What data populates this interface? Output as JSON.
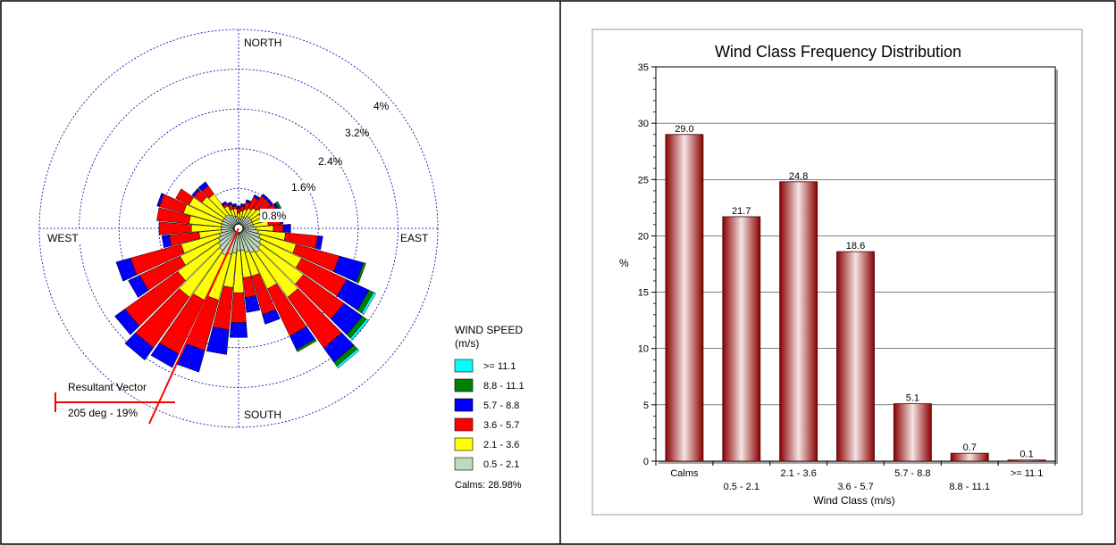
{
  "colors": {
    "speed_bins": [
      "#c0d8c0",
      "#ffff00",
      "#ff0000",
      "#0000ff",
      "#008000",
      "#00ffff"
    ],
    "bar_dark": "#8b0000",
    "bar_light": "#f4e4e4",
    "ring": "#0000aa",
    "resultant": "#ff0000"
  },
  "wind_rose": {
    "north": "NORTH",
    "south": "SOUTH",
    "east": "EAST",
    "west": "WEST",
    "ring_labels": [
      "0.8%",
      "1.6%",
      "2.4%",
      "3.2%",
      "4%"
    ],
    "ring_values": [
      0.8,
      1.6,
      2.4,
      3.2,
      4.0
    ],
    "legend_title": "WIND SPEED",
    "legend_unit": "(m/s)",
    "legend_items": [
      ">= 11.1",
      "8.8 - 11.1",
      "5.7 -  8.8",
      "3.6 -  5.7",
      "2.1 -  3.6",
      "0.5 -  2.1"
    ],
    "calms": "Calms: 28.98%",
    "resultant_label": "Resultant Vector",
    "resultant_value": "205 deg - 19%",
    "resultant_direction_deg": 205
  },
  "chart_data": [
    {
      "type": "wind-rose",
      "directions_deg": [
        0,
        10,
        20,
        30,
        40,
        50,
        60,
        70,
        80,
        90,
        100,
        110,
        120,
        130,
        140,
        150,
        160,
        170,
        180,
        190,
        200,
        210,
        220,
        230,
        240,
        250,
        260,
        270,
        280,
        290,
        300,
        310,
        320,
        330,
        340,
        350
      ],
      "bins": [
        "0.5 -  2.1",
        "2.1 -  3.6",
        "3.6 -  5.7",
        "5.7 -  8.8",
        "8.8 - 11.1",
        ">= 11.1"
      ],
      "cumulative_percent": [
        [
          0.2,
          0.3,
          0.4,
          0.45,
          0.45,
          0.45
        ],
        [
          0.2,
          0.35,
          0.45,
          0.5,
          0.5,
          0.5
        ],
        [
          0.25,
          0.4,
          0.55,
          0.6,
          0.6,
          0.6
        ],
        [
          0.25,
          0.45,
          0.7,
          0.75,
          0.75,
          0.75
        ],
        [
          0.3,
          0.5,
          0.8,
          0.85,
          0.85,
          0.85
        ],
        [
          0.3,
          0.55,
          0.8,
          0.85,
          0.85,
          0.85
        ],
        [
          0.3,
          0.5,
          0.85,
          0.9,
          0.95,
          0.95
        ],
        [
          0.3,
          0.5,
          0.75,
          0.8,
          0.8,
          0.8
        ],
        [
          0.3,
          0.6,
          0.85,
          0.9,
          0.9,
          0.9
        ],
        [
          0.35,
          0.7,
          0.9,
          1.05,
          1.05,
          1.05
        ],
        [
          0.4,
          0.95,
          1.6,
          1.7,
          1.7,
          1.7
        ],
        [
          0.45,
          1.2,
          2.1,
          2.6,
          2.65,
          2.65
        ],
        [
          0.5,
          1.4,
          2.4,
          2.9,
          3.0,
          3.05
        ],
        [
          0.55,
          1.6,
          2.6,
          3.05,
          3.15,
          3.2
        ],
        [
          0.6,
          1.7,
          2.95,
          3.3,
          3.4,
          3.45
        ],
        [
          0.55,
          1.35,
          2.4,
          2.7,
          2.75,
          2.75
        ],
        [
          0.5,
          1.0,
          1.8,
          2.0,
          2.0,
          2.0
        ],
        [
          0.45,
          1.0,
          1.4,
          1.7,
          1.7,
          1.7
        ],
        [
          0.45,
          1.3,
          1.9,
          2.2,
          2.2,
          2.2
        ],
        [
          0.5,
          1.2,
          2.05,
          2.55,
          2.55,
          2.55
        ],
        [
          0.55,
          1.5,
          2.55,
          3.0,
          3.0,
          3.0
        ],
        [
          0.6,
          1.6,
          2.8,
          3.1,
          3.1,
          3.1
        ],
        [
          0.55,
          1.7,
          2.95,
          3.25,
          3.25,
          3.25
        ],
        [
          0.5,
          1.5,
          2.8,
          3.05,
          3.05,
          3.05
        ],
        [
          0.45,
          1.3,
          2.2,
          2.45,
          2.45,
          2.45
        ],
        [
          0.4,
          1.2,
          2.25,
          2.55,
          2.55,
          2.55
        ],
        [
          0.35,
          0.8,
          1.4,
          1.55,
          1.55,
          1.55
        ],
        [
          0.35,
          0.95,
          1.6,
          1.6,
          1.6,
          1.6
        ],
        [
          0.35,
          1.0,
          1.65,
          1.65,
          1.65,
          1.65
        ],
        [
          0.35,
          1.15,
          1.65,
          1.7,
          1.7,
          1.7
        ],
        [
          0.35,
          1.1,
          1.4,
          1.4,
          1.4,
          1.4
        ],
        [
          0.35,
          0.9,
          1.1,
          1.15,
          1.15,
          1.15
        ],
        [
          0.35,
          0.85,
          1.05,
          1.15,
          1.15,
          1.15
        ],
        [
          0.3,
          0.5,
          0.55,
          0.6,
          0.6,
          0.6
        ],
        [
          0.25,
          0.4,
          0.5,
          0.55,
          0.55,
          0.55
        ],
        [
          0.25,
          0.4,
          0.45,
          0.5,
          0.5,
          0.5
        ]
      ],
      "rlim": [
        0,
        4
      ],
      "grid": true,
      "legend_placement": "right"
    },
    {
      "type": "bar",
      "title": "Wind Class Frequency Distribution",
      "xlabel": "Wind Class (m/s)",
      "ylabel": "%",
      "categories": [
        "Calms",
        "0.5 -  2.1",
        "2.1 -  3.6",
        "3.6 -  5.7",
        "5.7 -  8.8",
        "8.8 - 11.1",
        ">= 11.1"
      ],
      "values": [
        29.0,
        21.7,
        24.8,
        18.6,
        5.1,
        0.7,
        0.1
      ],
      "value_labels": [
        "29.0",
        "21.7",
        "24.8",
        "18.6",
        "5.1",
        "0.7",
        "0.1"
      ],
      "ylim": [
        0,
        35
      ],
      "yticks": [
        0,
        5,
        10,
        15,
        20,
        25,
        30,
        35
      ],
      "ytick_labels": [
        "0",
        "5",
        "10",
        "15",
        "20",
        "25",
        "30",
        "35"
      ],
      "grid": true
    }
  ]
}
